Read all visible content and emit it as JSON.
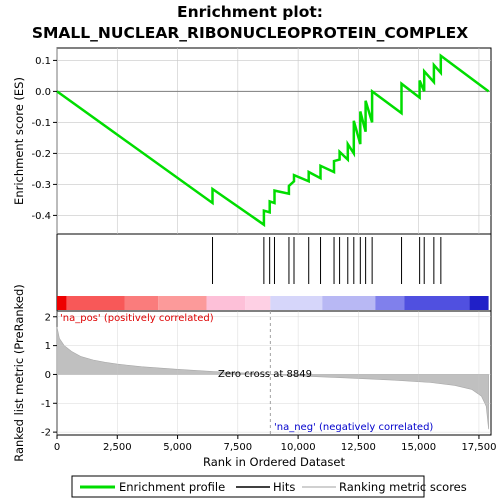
{
  "chart_data": {
    "type": "line",
    "title_line1": "Enrichment plot:",
    "title_line2": "SMALL_NUCLEAR_RIBONUCLEOPROTEIN_COMPLEX",
    "es_ylabel": "Enrichment score (ES)",
    "metric_ylabel": "Ranked list metric (PreRanked)",
    "xlabel": "Rank in Ordered Dataset",
    "x_ticks": [
      0,
      2500,
      5000,
      7500,
      10000,
      12500,
      15000,
      17500
    ],
    "x_tick_labels": [
      "0",
      "2,500",
      "5,000",
      "7,500",
      "10,000",
      "12,500",
      "15,000",
      "17,500"
    ],
    "xlim": [
      0,
      18000
    ],
    "es_ylim": [
      -0.46,
      0.14
    ],
    "es_ticks": [
      0.1,
      0.0,
      -0.1,
      -0.2,
      -0.3,
      -0.4
    ],
    "es_tick_labels": [
      "0.1",
      "0.0",
      "-0.1",
      "-0.2",
      "-0.3",
      "-0.4"
    ],
    "metric_ylim": [
      -2.1,
      2.2
    ],
    "metric_ticks": [
      2,
      1,
      0,
      -1,
      -2
    ],
    "metric_tick_labels": [
      "2",
      "1",
      "0",
      "-1",
      "-2"
    ],
    "max_rank": 17900,
    "hits": [
      6450,
      8580,
      8820,
      9020,
      9620,
      9830,
      10440,
      10930,
      11490,
      11720,
      12060,
      12310,
      12580,
      12800,
      13070,
      14290,
      15040,
      15230,
      15630,
      15920
    ],
    "es_start": 0.0,
    "es_end": 0.0,
    "es_before_hit": [
      -0.36,
      -0.43,
      -0.39,
      -0.36,
      -0.33,
      -0.29,
      -0.29,
      -0.28,
      -0.26,
      -0.22,
      -0.22,
      -0.2,
      -0.17,
      -0.13,
      -0.1,
      -0.07,
      -0.02,
      0.0,
      0.03,
      0.06
    ],
    "es_after_hit": [
      -0.315,
      -0.385,
      -0.355,
      -0.32,
      -0.305,
      -0.27,
      -0.26,
      -0.24,
      -0.225,
      -0.195,
      -0.17,
      -0.095,
      -0.065,
      -0.03,
      0.0,
      0.025,
      0.035,
      0.065,
      0.085,
      0.115
    ],
    "metric_curve": [
      [
        0,
        1.65
      ],
      [
        100,
        1.25
      ],
      [
        300,
        1.0
      ],
      [
        600,
        0.8
      ],
      [
        1000,
        0.62
      ],
      [
        1500,
        0.5
      ],
      [
        2000,
        0.42
      ],
      [
        2500,
        0.36
      ],
      [
        3500,
        0.27
      ],
      [
        5000,
        0.18
      ],
      [
        6500,
        0.1
      ],
      [
        8000,
        0.04
      ],
      [
        8849,
        0.0
      ],
      [
        10000,
        -0.05
      ],
      [
        12000,
        -0.12
      ],
      [
        14000,
        -0.2
      ],
      [
        15500,
        -0.28
      ],
      [
        16500,
        -0.38
      ],
      [
        17200,
        -0.52
      ],
      [
        17600,
        -0.75
      ],
      [
        17800,
        -1.1
      ],
      [
        17900,
        -1.9
      ]
    ],
    "zero_cross_rank": 8849,
    "zero_cross_label": "Zero cross at 8849",
    "pos_label": "'na_pos' (positively correlated)",
    "neg_label": "'na_neg' (negatively correlated)",
    "legend": [
      "Enrichment profile",
      "Hits",
      "Ranking metric scores"
    ],
    "colors": {
      "es_line": "#00dd00",
      "hit": "#000000",
      "metric_fill": "#c0c0c0",
      "pos_text": "#dd0000",
      "neg_text": "#0000cc",
      "grid": "#c8c8c8",
      "zero_line": "#a0a0a0"
    },
    "heatbar": [
      {
        "from": 0,
        "to": 400,
        "color": "#ee0000"
      },
      {
        "from": 400,
        "to": 2800,
        "color": "#f85858"
      },
      {
        "from": 2800,
        "to": 4200,
        "color": "#fa7c7c"
      },
      {
        "from": 4200,
        "to": 6200,
        "color": "#fc9a9a"
      },
      {
        "from": 6200,
        "to": 7800,
        "color": "#fdc0d8"
      },
      {
        "from": 7800,
        "to": 8849,
        "color": "#fed0e4"
      },
      {
        "from": 8849,
        "to": 11000,
        "color": "#d6d6fa"
      },
      {
        "from": 11000,
        "to": 13200,
        "color": "#b8b8f4"
      },
      {
        "from": 13200,
        "to": 14400,
        "color": "#8080ec"
      },
      {
        "from": 14400,
        "to": 17100,
        "color": "#5050e0"
      },
      {
        "from": 17100,
        "to": 17900,
        "color": "#2020c8"
      }
    ]
  }
}
